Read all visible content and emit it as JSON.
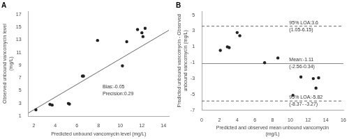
{
  "chart_data": [
    {
      "type": "scatter",
      "title": "A",
      "xlabel": "Predicted unbound vancomycin level (mg/L)",
      "ylabel": "Observed unbound vancomycin level\n(mg/L)",
      "series": [
        {
          "type": "scatter",
          "x": [
            2.2,
            3.5,
            3.7,
            5.2,
            5.3,
            6.5,
            6.6,
            7.9,
            10.2,
            10.6,
            11.6,
            12.0,
            12.1,
            12.3
          ],
          "values": [
            2.0,
            2.85,
            2.75,
            3.0,
            2.9,
            7.3,
            7.3,
            12.9,
            8.9,
            12.7,
            14.6,
            14.1,
            13.5,
            14.8
          ],
          "color": "#222222",
          "marker": "circle"
        },
        {
          "type": "line",
          "x": [
            1.5,
            14.5
          ],
          "values": [
            1.5,
            14.5
          ],
          "color": "#666666",
          "line_style": "solid"
        }
      ],
      "xlim": [
        1.5,
        14.5
      ],
      "xticks": [
        2,
        4,
        6,
        8,
        10,
        12,
        14
      ],
      "ylim": [
        1.0,
        17.5
      ],
      "yticks": [
        1,
        3,
        5,
        7,
        9,
        11,
        13,
        15,
        17
      ],
      "grid": false,
      "annotations": [
        {
          "text": "Bias:-0.05\nPrecision:0.29",
          "x": 8.3,
          "y": 5.0
        }
      ]
    },
    {
      "type": "scatter",
      "title": "B",
      "xlabel": "Predicted and observed mean unbound vancomycin\n(mg/L)",
      "ylabel": "Predicted unbound vancomycin - Observed\nunbound vancomycin (mg/L)",
      "series": [
        {
          "type": "scatter",
          "x": [
            2.1,
            2.9,
            3.1,
            4.0,
            4.3,
            7.1,
            8.6,
            10.3,
            11.2,
            12.6,
            12.9,
            13.2
          ],
          "values": [
            0.55,
            1.0,
            0.9,
            2.8,
            2.4,
            -1.0,
            -0.4,
            -5.1,
            -2.8,
            -3.0,
            -4.2,
            -2.9
          ],
          "color": "#222222",
          "marker": "circle"
        },
        {
          "type": "hline",
          "values": [
            -1.11
          ],
          "color": "#888888",
          "line_style": "solid"
        },
        {
          "type": "hline",
          "values": [
            3.6
          ],
          "color": "#666666",
          "line_style": "dashed"
        },
        {
          "type": "hline",
          "values": [
            -5.82
          ],
          "color": "#666666",
          "line_style": "dashed"
        }
      ],
      "xlim": [
        0,
        16
      ],
      "xticks": [
        0,
        2,
        4,
        6,
        8,
        10,
        12,
        14,
        16
      ],
      "ylim": [
        -7,
        5.5
      ],
      "yticks": [
        -7,
        -5,
        -3,
        -1,
        1,
        3,
        5
      ],
      "grid": false,
      "annotations": [
        {
          "text": "95% LOA:3.6\n(1.05-6.15)",
          "x": 9.8,
          "y": 3.6
        },
        {
          "text": "Mean:-1.11\n(-2.56-0.34)",
          "x": 9.8,
          "y": -1.11
        },
        {
          "text": "95% LOA:-5.82\n(-8.37- -3.27)",
          "x": 9.8,
          "y": -5.82
        }
      ]
    }
  ]
}
